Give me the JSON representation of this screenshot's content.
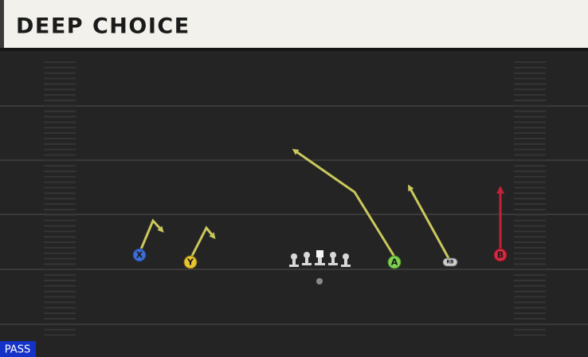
{
  "header": {
    "title": "DEEP CHOICE"
  },
  "players": [
    {
      "label": "X"
    },
    {
      "label": "Y"
    },
    {
      "label": "A"
    },
    {
      "label": "RB"
    },
    {
      "label": "B"
    }
  ],
  "badge": {
    "label": "PASS"
  }
}
